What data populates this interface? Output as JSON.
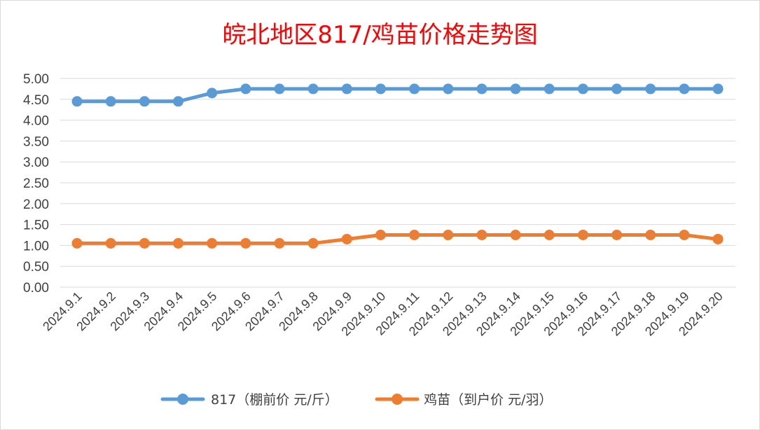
{
  "chart_data": {
    "type": "line",
    "title": "皖北地区817/鸡苗价格走势图",
    "categories": [
      "2024.9.1",
      "2024.9.2",
      "2024.9.3",
      "2024.9.4",
      "2024.9.5",
      "2024.9.6",
      "2024.9.7",
      "2024.9.8",
      "2024.9.9",
      "2024.9.10",
      "2024.9.11",
      "2024.9.12",
      "2024.9.13",
      "2024.9.14",
      "2024.9.15",
      "2024.9.16",
      "2024.9.17",
      "2024.9.18",
      "2024.9.19",
      "2024.9.20"
    ],
    "series": [
      {
        "name": "817（棚前价 元/斤）",
        "color": "#5b9bd5",
        "values": [
          4.45,
          4.45,
          4.45,
          4.45,
          4.65,
          4.75,
          4.75,
          4.75,
          4.75,
          4.75,
          4.75,
          4.75,
          4.75,
          4.75,
          4.75,
          4.75,
          4.75,
          4.75,
          4.75,
          4.75
        ]
      },
      {
        "name": "鸡苗（到户价 元/羽）",
        "color": "#ed7d31",
        "values": [
          1.05,
          1.05,
          1.05,
          1.05,
          1.05,
          1.05,
          1.05,
          1.05,
          1.15,
          1.25,
          1.25,
          1.25,
          1.25,
          1.25,
          1.25,
          1.25,
          1.25,
          1.25,
          1.25,
          1.15
        ]
      }
    ],
    "yticks": [
      "0.00",
      "0.50",
      "1.00",
      "1.50",
      "2.00",
      "2.50",
      "3.00",
      "3.50",
      "4.00",
      "4.50",
      "5.00"
    ],
    "ylim": [
      0,
      5
    ],
    "grid": true,
    "legend": "bottom",
    "title_color": "#ff0000",
    "gridline_color": "#d9d9d9"
  }
}
